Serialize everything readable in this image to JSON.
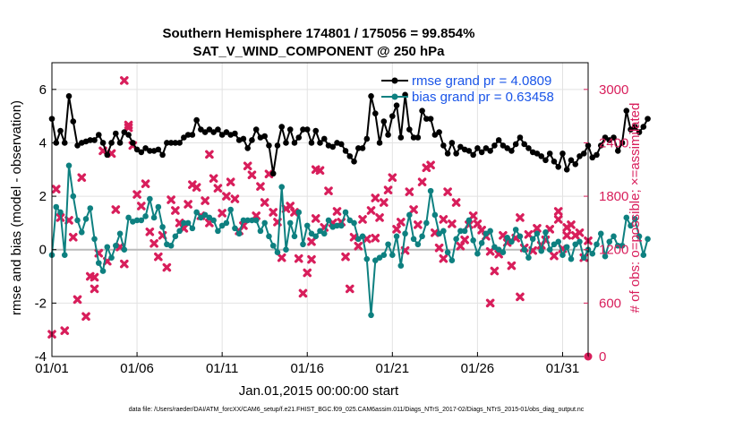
{
  "chart_data": {
    "type": "line",
    "title": "Southern Hemisphere 174801 / 175056 = 99.854%",
    "subtitle": "SAT_V_WIND_COMPONENT @ 250 hPa",
    "xlabel": "Jan.01,2015 00:00:00 start",
    "ylabel": "rmse and bias (model - observation)",
    "y2label": "# of obs: o=possible; ×=assimilated",
    "footer": "data file: /Users/raeder/DAI/ATM_forcXX/CAM6_setup/f.e21.FHIST_BGC.f09_025.CAM6assim.011/Diags_NTrS_2017-02/Diags_NTrS_2015-01/obs_diag_output.nc",
    "xlim": [
      1,
      32.5
    ],
    "ylim": [
      -4,
      7
    ],
    "y2lim": [
      0,
      3300
    ],
    "x_ticks": [
      1,
      6,
      11,
      16,
      21,
      26,
      31
    ],
    "x_tick_labels": [
      "01/01",
      "01/06",
      "01/11",
      "01/16",
      "01/21",
      "01/26",
      "01/31"
    ],
    "y_ticks": [
      -4,
      -2,
      0,
      2,
      4,
      6
    ],
    "y2_ticks": [
      0,
      600,
      1200,
      1800,
      2400,
      3000
    ],
    "zero_line": 0,
    "colors": {
      "rmse": "#000000",
      "bias": "#0e8080",
      "obs": "#d81e5b",
      "legend_text": "#1a55e8",
      "zero_line": "#bbbbbb"
    },
    "legend": {
      "placement": "top-right",
      "entries": [
        {
          "key": "rmse",
          "label": "rmse grand pr = 4.0809"
        },
        {
          "key": "bias",
          "label": "bias grand pr = 0.63458"
        }
      ]
    },
    "time_step": 0.25,
    "rmse": [
      4.9,
      4.0,
      4.45,
      4.0,
      5.75,
      4.8,
      3.9,
      4.0,
      4.05,
      4.1,
      4.1,
      4.3,
      4.0,
      3.55,
      4.0,
      4.35,
      4.0,
      4.4,
      4.3,
      4.0,
      3.75,
      3.65,
      3.8,
      3.7,
      3.7,
      3.75,
      3.55,
      4.0,
      4.0,
      4.0,
      4.0,
      4.2,
      4.3,
      4.3,
      4.85,
      4.5,
      4.4,
      4.5,
      4.4,
      4.5,
      4.3,
      4.4,
      4.3,
      4.35,
      4.1,
      4.15,
      3.8,
      4.1,
      4.5,
      4.2,
      4.25,
      3.9,
      2.85,
      3.9,
      4.6,
      4.0,
      4.5,
      4.0,
      4.2,
      4.5,
      4.5,
      4.0,
      4.45,
      4.0,
      4.15,
      3.9,
      3.85,
      4.0,
      3.95,
      3.7,
      3.5,
      3.3,
      3.8,
      3.8,
      4.15,
      5.75,
      5.1,
      4.0,
      4.8,
      4.3,
      5.0,
      5.4,
      4.2,
      5.8,
      4.5,
      4.2,
      4.2,
      5.2,
      4.9,
      4.9,
      4.3,
      4.4,
      3.9,
      3.6,
      4.0,
      3.6,
      3.85,
      3.75,
      3.7,
      3.55,
      3.8,
      3.65,
      3.8,
      3.7,
      3.9,
      4.1,
      3.9,
      3.8,
      3.7,
      3.95,
      4.2,
      3.95,
      3.8,
      3.65,
      3.6,
      3.5,
      3.35,
      3.6,
      3.3,
      3.1,
      3.6,
      3.0,
      3.35,
      3.2,
      3.5,
      3.6,
      3.9,
      3.45,
      3.55,
      3.9,
      4.2,
      4.1,
      4.2,
      3.7,
      4.0,
      5.2,
      4.5,
      4.6,
      4.4,
      4.6,
      4.9
    ],
    "bias": [
      -0.2,
      1.6,
      1.4,
      -0.2,
      3.15,
      2.0,
      1.1,
      0.65,
      1.15,
      1.55,
      0.4,
      -0.5,
      -0.8,
      0.1,
      -0.3,
      0.15,
      0.6,
      0.0,
      1.2,
      1.05,
      1.1,
      1.1,
      1.25,
      1.9,
      1.2,
      1.6,
      0.85,
      0.2,
      0.15,
      0.5,
      0.7,
      1.0,
      1.0,
      0.8,
      1.4,
      1.2,
      1.3,
      1.2,
      1.1,
      0.7,
      0.9,
      1.0,
      1.5,
      0.8,
      0.6,
      1.1,
      1.1,
      1.1,
      1.1,
      0.7,
      1.0,
      0.5,
      0.15,
      -0.1,
      2.35,
      0.0,
      1.0,
      0.5,
      1.4,
      0.2,
      0.9,
      0.6,
      0.5,
      0.7,
      0.6,
      1.1,
      0.85,
      0.9,
      0.9,
      1.4,
      1.1,
      1.0,
      0.4,
      0.5,
      -0.35,
      -2.45,
      -0.4,
      -0.3,
      -0.2,
      0.2,
      -0.2,
      0.5,
      -0.6,
      0.6,
      1.3,
      0.4,
      0.2,
      0.5,
      1.0,
      2.2,
      1.3,
      0.6,
      0.7,
      -0.1,
      -0.4,
      0.4,
      0.7,
      0.7,
      1.1,
      0.35,
      -0.15,
      0.25,
      0.6,
      0.7,
      0.1,
      0.0,
      -0.1,
      0.45,
      0.3,
      0.75,
      0.5,
      0.0,
      -0.3,
      0.4,
      0.6,
      -0.05,
      0.65,
      0.0,
      0.2,
      0.3,
      -0.2,
      0.1,
      -0.35,
      0.2,
      0.3,
      -0.3,
      0.0,
      -0.15,
      0.2,
      0.6,
      -0.25,
      0.3,
      0.5,
      0.15,
      0.15,
      1.2,
      0.9,
      1.15,
      0.5,
      -0.2,
      0.4
    ],
    "obs_assimilated": [
      [
        1.0,
        250
      ],
      [
        1.25,
        1880
      ],
      [
        1.5,
        1560
      ],
      [
        1.75,
        290
      ],
      [
        2.0,
        1530
      ],
      [
        2.25,
        1340
      ],
      [
        2.5,
        640
      ],
      [
        2.75,
        2010
      ],
      [
        3.0,
        450
      ],
      [
        3.25,
        900
      ],
      [
        3.5,
        890
      ],
      [
        3.75,
        1160
      ],
      [
        4.0,
        2310
      ],
      [
        4.25,
        1070
      ],
      [
        4.5,
        2280
      ],
      [
        4.75,
        1650
      ],
      [
        5.0,
        1230
      ],
      [
        5.25,
        1040
      ],
      [
        5.5,
        2570
      ],
      [
        5.75,
        2370
      ],
      [
        6.0,
        1820
      ],
      [
        6.25,
        1690
      ],
      [
        6.5,
        1940
      ],
      [
        6.75,
        1400
      ],
      [
        7.0,
        1270
      ],
      [
        7.25,
        1120
      ],
      [
        7.5,
        1360
      ],
      [
        7.75,
        1000
      ],
      [
        8.0,
        1760
      ],
      [
        8.25,
        1640
      ],
      [
        8.5,
        1500
      ],
      [
        8.75,
        1440
      ],
      [
        9.0,
        1710
      ],
      [
        9.25,
        1930
      ],
      [
        9.5,
        1900
      ],
      [
        9.75,
        1580
      ],
      [
        10.0,
        1750
      ],
      [
        10.25,
        1500
      ],
      [
        10.5,
        2000
      ],
      [
        10.75,
        1890
      ],
      [
        11.0,
        1610
      ],
      [
        11.25,
        1800
      ],
      [
        11.5,
        1960
      ],
      [
        11.75,
        1770
      ],
      [
        12.0,
        1410
      ],
      [
        12.25,
        1470
      ],
      [
        12.5,
        2140
      ],
      [
        12.75,
        2040
      ],
      [
        13.0,
        1580
      ],
      [
        13.25,
        1910
      ],
      [
        13.5,
        1730
      ],
      [
        13.75,
        2050
      ],
      [
        14.0,
        1620
      ],
      [
        14.25,
        1510
      ],
      [
        14.5,
        1110
      ],
      [
        14.75,
        1660
      ],
      [
        15.0,
        1690
      ],
      [
        15.25,
        1620
      ],
      [
        15.5,
        1100
      ],
      [
        15.75,
        710
      ],
      [
        16.0,
        940
      ],
      [
        16.25,
        1090
      ],
      [
        16.5,
        1550
      ],
      [
        16.75,
        2090
      ],
      [
        17.0,
        1450
      ],
      [
        17.25,
        1860
      ],
      [
        17.5,
        1500
      ],
      [
        17.75,
        1630
      ],
      [
        18.0,
        1510
      ],
      [
        18.25,
        1120
      ],
      [
        18.5,
        760
      ],
      [
        18.75,
        1340
      ],
      [
        19.0,
        1240
      ],
      [
        19.25,
        1540
      ],
      [
        19.5,
        1320
      ],
      [
        19.75,
        1640
      ],
      [
        20.0,
        1780
      ],
      [
        20.25,
        1560
      ],
      [
        20.5,
        1730
      ],
      [
        20.75,
        1870
      ],
      [
        21.0,
        2010
      ],
      [
        21.25,
        1430
      ],
      [
        21.5,
        1510
      ],
      [
        21.75,
        1190
      ],
      [
        22.0,
        1850
      ],
      [
        22.25,
        1650
      ],
      [
        22.5,
        1480
      ],
      [
        22.75,
        1960
      ],
      [
        23.0,
        2120
      ],
      [
        23.25,
        2150
      ],
      [
        23.5,
        1390
      ],
      [
        23.75,
        1220
      ],
      [
        24.0,
        1540
      ],
      [
        24.25,
        1850
      ],
      [
        24.5,
        1490
      ],
      [
        24.75,
        1730
      ],
      [
        25.0,
        1240
      ],
      [
        25.25,
        1310
      ],
      [
        25.5,
        1480
      ],
      [
        25.75,
        1580
      ],
      [
        26.0,
        1490
      ],
      [
        26.25,
        1420
      ],
      [
        26.5,
        1350
      ],
      [
        26.75,
        1180
      ],
      [
        27.0,
        960
      ],
      [
        27.25,
        1150
      ],
      [
        27.5,
        1360
      ],
      [
        27.75,
        1280
      ],
      [
        28.0,
        1020
      ],
      [
        28.25,
        1330
      ],
      [
        28.5,
        1560
      ],
      [
        28.75,
        1220
      ],
      [
        29.0,
        1370
      ],
      [
        29.25,
        1190
      ],
      [
        29.5,
        1440
      ],
      [
        29.75,
        1250
      ],
      [
        30.0,
        1310
      ],
      [
        30.25,
        1430
      ],
      [
        30.5,
        1130
      ],
      [
        30.75,
        1540
      ],
      [
        31.0,
        1210
      ],
      [
        31.25,
        1360
      ],
      [
        31.5,
        1480
      ],
      [
        31.75,
        1360
      ],
      [
        32.0,
        1390
      ],
      [
        32.25,
        1110
      ],
      [
        32.5,
        1300
      ],
      [
        5.25,
        3100
      ],
      [
        5.5,
        2600
      ],
      [
        10.25,
        2270
      ],
      [
        16.5,
        2100
      ],
      [
        20.0,
        1330
      ],
      [
        24.0,
        1100
      ],
      [
        26.75,
        600
      ],
      [
        28.5,
        670
      ],
      [
        30.75,
        1630
      ],
      [
        3.5,
        760
      ],
      [
        16.25,
        1290
      ],
      [
        31.25,
        1450
      ]
    ],
    "obs_possible": [
      [
        32.5,
        0
      ]
    ]
  }
}
